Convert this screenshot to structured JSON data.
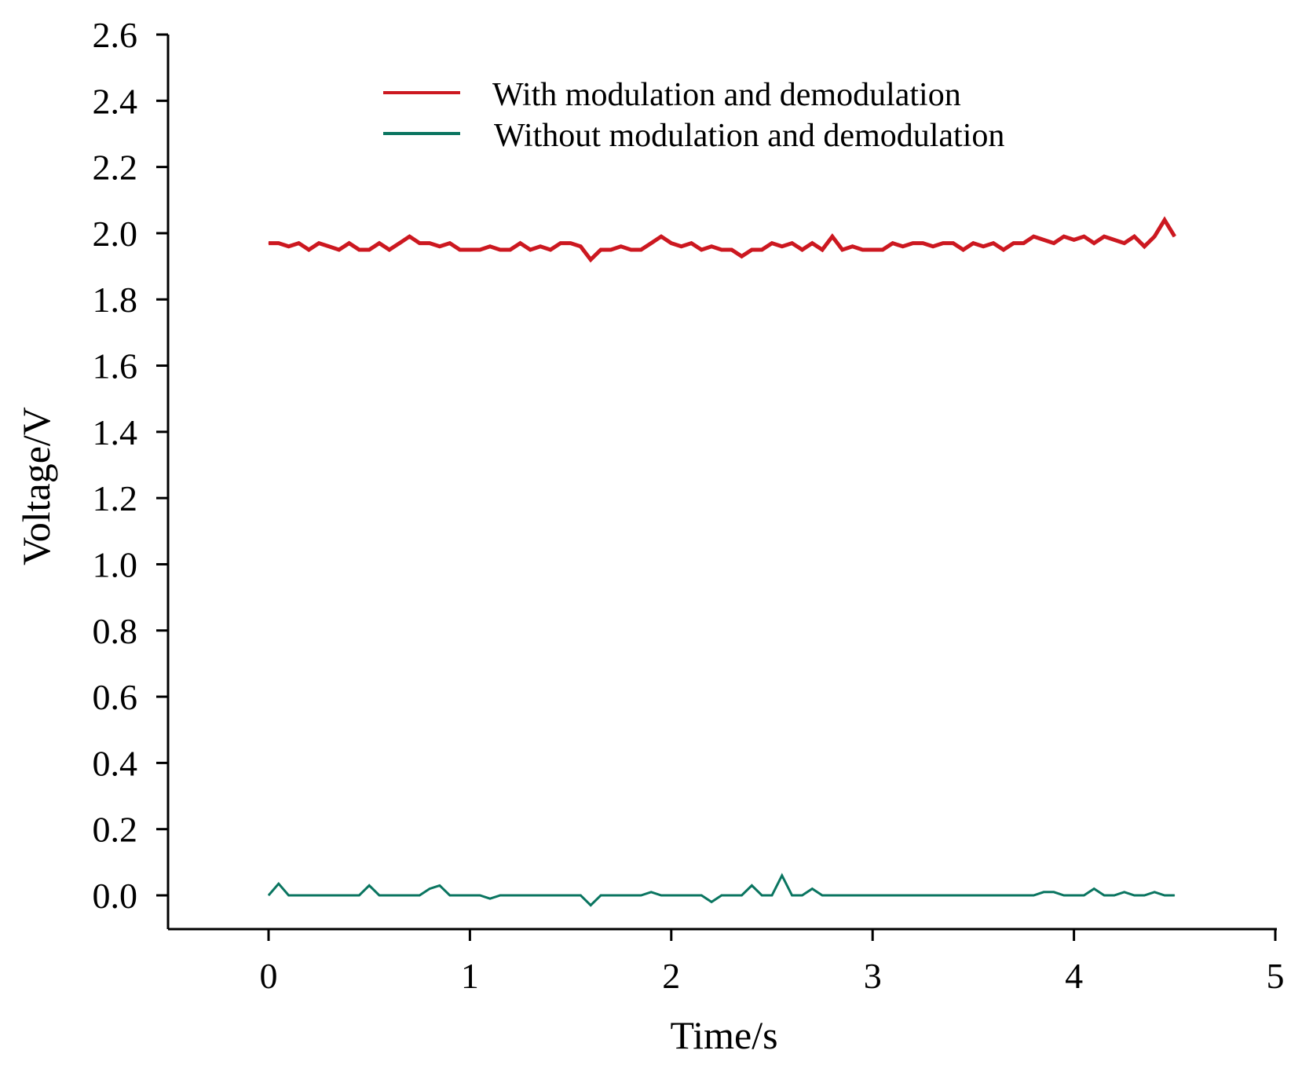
{
  "chart_data": {
    "type": "line",
    "title": "",
    "xlabel": "Time/s",
    "ylabel": "Voltage/V",
    "xlim": [
      -0.5,
      5
    ],
    "ylim": [
      -0.1,
      2.6
    ],
    "xticks": [
      "0",
      "1",
      "2",
      "3",
      "4",
      "5"
    ],
    "yticks": [
      "0.0",
      "0.2",
      "0.4",
      "0.6",
      "0.8",
      "1.0",
      "1.2",
      "1.4",
      "1.6",
      "1.8",
      "2.0",
      "2.2",
      "2.4",
      "2.6"
    ],
    "grid": false,
    "legend_position": "top-center",
    "x_step": 0.05,
    "x_start": 0,
    "series": [
      {
        "name": "With modulation and demodulation",
        "color": "#cc1820",
        "values": [
          1.97,
          1.97,
          1.96,
          1.97,
          1.95,
          1.97,
          1.96,
          1.95,
          1.97,
          1.95,
          1.95,
          1.97,
          1.95,
          1.97,
          1.99,
          1.97,
          1.97,
          1.96,
          1.97,
          1.95,
          1.95,
          1.95,
          1.96,
          1.95,
          1.95,
          1.97,
          1.95,
          1.96,
          1.95,
          1.97,
          1.97,
          1.96,
          1.92,
          1.95,
          1.95,
          1.96,
          1.95,
          1.95,
          1.97,
          1.99,
          1.97,
          1.96,
          1.97,
          1.95,
          1.96,
          1.95,
          1.95,
          1.93,
          1.95,
          1.95,
          1.97,
          1.96,
          1.97,
          1.95,
          1.97,
          1.95,
          1.99,
          1.95,
          1.96,
          1.95,
          1.95,
          1.95,
          1.97,
          1.96,
          1.97,
          1.97,
          1.96,
          1.97,
          1.97,
          1.95,
          1.97,
          1.96,
          1.97,
          1.95,
          1.97,
          1.97,
          1.99,
          1.98,
          1.97,
          1.99,
          1.98,
          1.99,
          1.97,
          1.99,
          1.98,
          1.97,
          1.99,
          1.96,
          1.99,
          2.04,
          1.99
        ]
      },
      {
        "name": "Without modulation and demodulation",
        "color": "#0a7560",
        "values": [
          0,
          0.035,
          0,
          0,
          0,
          0,
          0,
          0,
          0,
          0,
          0.03,
          0,
          0,
          0,
          0,
          0,
          0.02,
          0.03,
          0,
          0,
          0,
          0,
          -0.01,
          0,
          0,
          0,
          0,
          0,
          0,
          0,
          0,
          0,
          -0.03,
          0,
          0,
          0,
          0,
          0,
          0.01,
          0,
          0,
          0,
          0,
          0,
          -0.02,
          0,
          0,
          0,
          0.03,
          0,
          0,
          0.06,
          0,
          0,
          0.02,
          0,
          0,
          0,
          0,
          0,
          0,
          0,
          0,
          0,
          0,
          0,
          0,
          0,
          0,
          0,
          0,
          0,
          0,
          0,
          0,
          0,
          0,
          0.01,
          0.01,
          0,
          0,
          0,
          0.02,
          0,
          0,
          0.01,
          0,
          0,
          0.01,
          0,
          0
        ]
      }
    ]
  }
}
